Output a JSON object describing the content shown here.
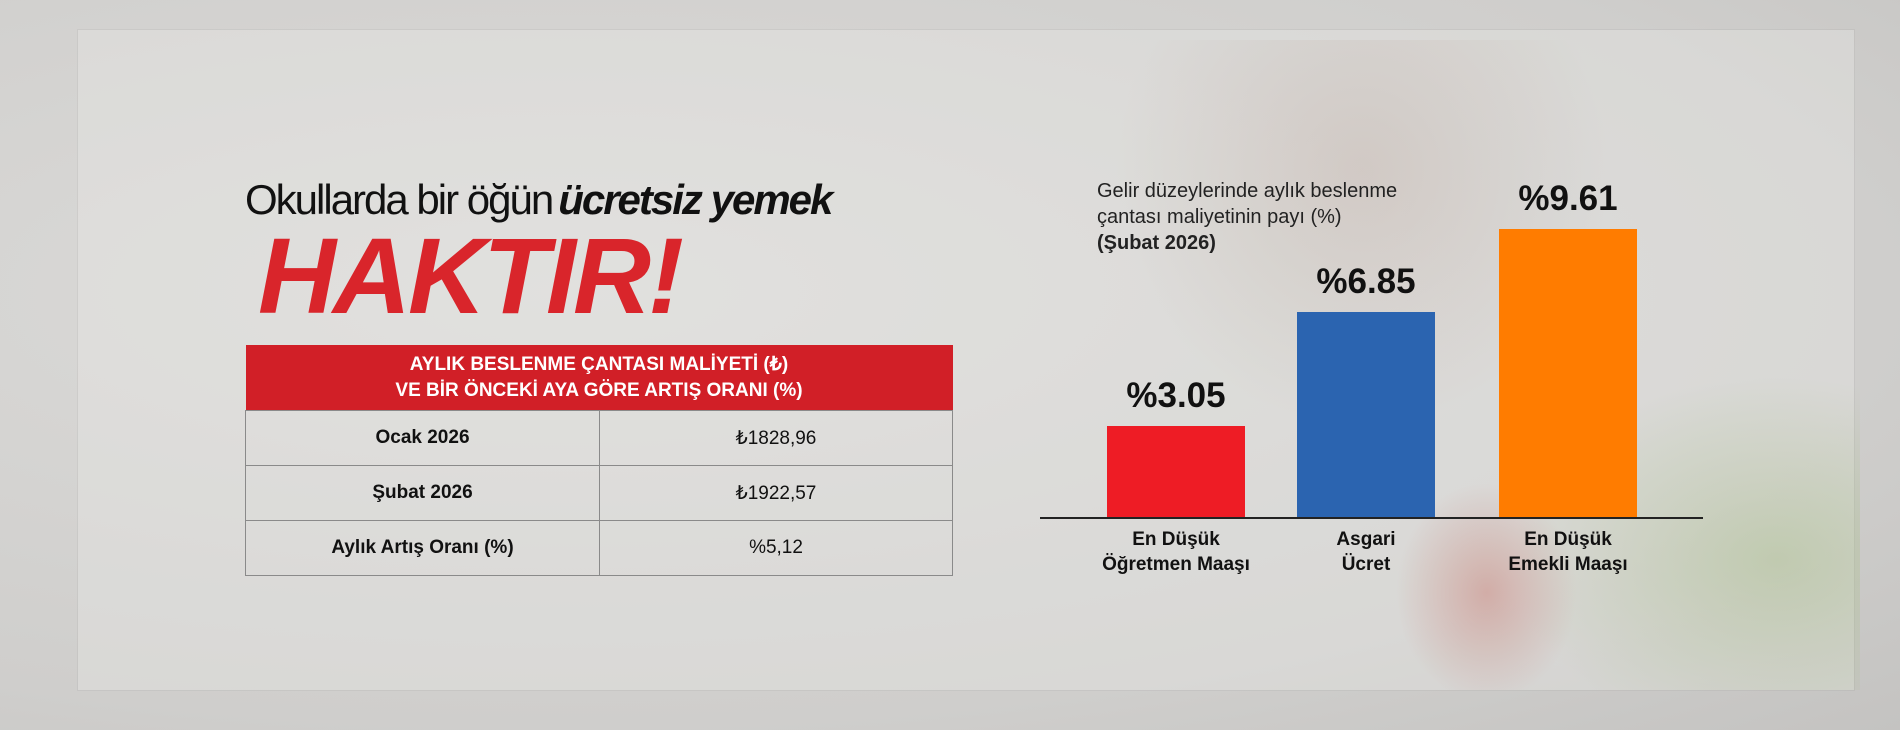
{
  "headline": {
    "light": "Okullarda bir öğün",
    "bold": "ücretsiz yemek",
    "big": "HAKTIR!"
  },
  "table": {
    "header_line1": "AYLIK BESLENME ÇANTASI MALİYETİ (₺)",
    "header_line2": "VE BİR ÖNCEKİ AYA GÖRE ARTIŞ ORANI (%)",
    "rows": [
      {
        "label": "Ocak 2026",
        "value": "₺1828,96"
      },
      {
        "label": "Şubat 2026",
        "value": "₺1922,57"
      },
      {
        "label": "Aylık Artış Oranı (%)",
        "value": "%5,12"
      }
    ]
  },
  "chart_data": {
    "type": "bar",
    "title_line1": "Gelir düzeylerinde aylık beslenme",
    "title_line2": "çantası maliyetinin payı (%)",
    "title_line3": "(Şubat 2026)",
    "categories": [
      [
        "En Düşük",
        "Öğretmen Maaşı"
      ],
      [
        "Asgari",
        "Ücret"
      ],
      [
        "En Düşük",
        "Emekli Maaşı"
      ]
    ],
    "values": [
      3.05,
      6.85,
      9.61
    ],
    "data_labels": [
      "%3.05",
      "%6.85",
      "%9.61"
    ],
    "colors": [
      "#ee1c25",
      "#2b64b0",
      "#ff7c00"
    ],
    "grid": false
  }
}
